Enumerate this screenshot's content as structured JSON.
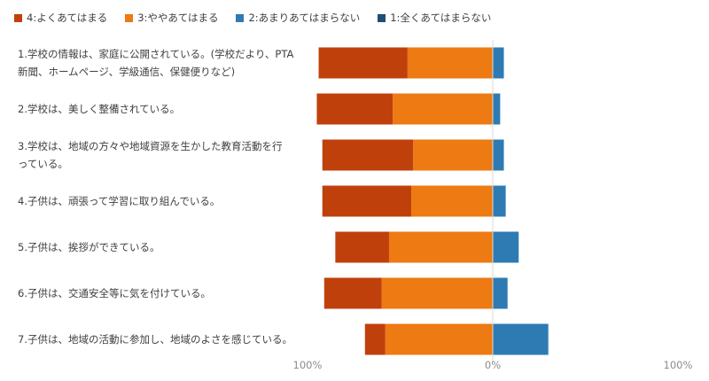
{
  "chart_data": {
    "type": "bar",
    "orientation": "horizontal-diverging",
    "legend_position": "top-left",
    "grid": false,
    "xlim": [
      -100,
      100
    ],
    "x_tick_labels": [
      "100%",
      "0%",
      "100%"
    ],
    "categories": [
      [
        "1.学校の情報は、家庭に公開されている。(学校だより、PTA",
        "新聞、ホームページ、学級通信、保健便りなど)"
      ],
      [
        "2.学校は、美しく整備されている。"
      ],
      [
        "3.学校は、地域の方々や地域資源を生かした教育活動を行",
        "っている。"
      ],
      [
        "4.子供は、頑張って学習に取り組んでいる。"
      ],
      [
        "5.子供は、挨拶ができている。"
      ],
      [
        "6.子供は、交通安全等に気を付けている。"
      ],
      [
        "7.子供は、地域の活動に参加し、地域のよさを感じている。"
      ]
    ],
    "series": [
      {
        "name": "4:よくあてはまる",
        "color": "#C0400C",
        "side": "negative",
        "values": [
          48,
          41,
          49,
          48,
          29,
          31,
          11
        ]
      },
      {
        "name": "3:ややあてはまる",
        "color": "#ED7A12",
        "side": "negative",
        "values": [
          46,
          54,
          43,
          44,
          56,
          60,
          58
        ]
      },
      {
        "name": "2:あまりあてはまらない",
        "color": "#2E7BB4",
        "side": "positive",
        "values": [
          6,
          4,
          6,
          7,
          14,
          8,
          30
        ]
      },
      {
        "name": "1:全くあてはまらない",
        "color": "#1F4E79",
        "side": "positive",
        "values": [
          0,
          0,
          0,
          0,
          0,
          0,
          0
        ]
      }
    ],
    "axis_color": "#d9d9d9"
  }
}
